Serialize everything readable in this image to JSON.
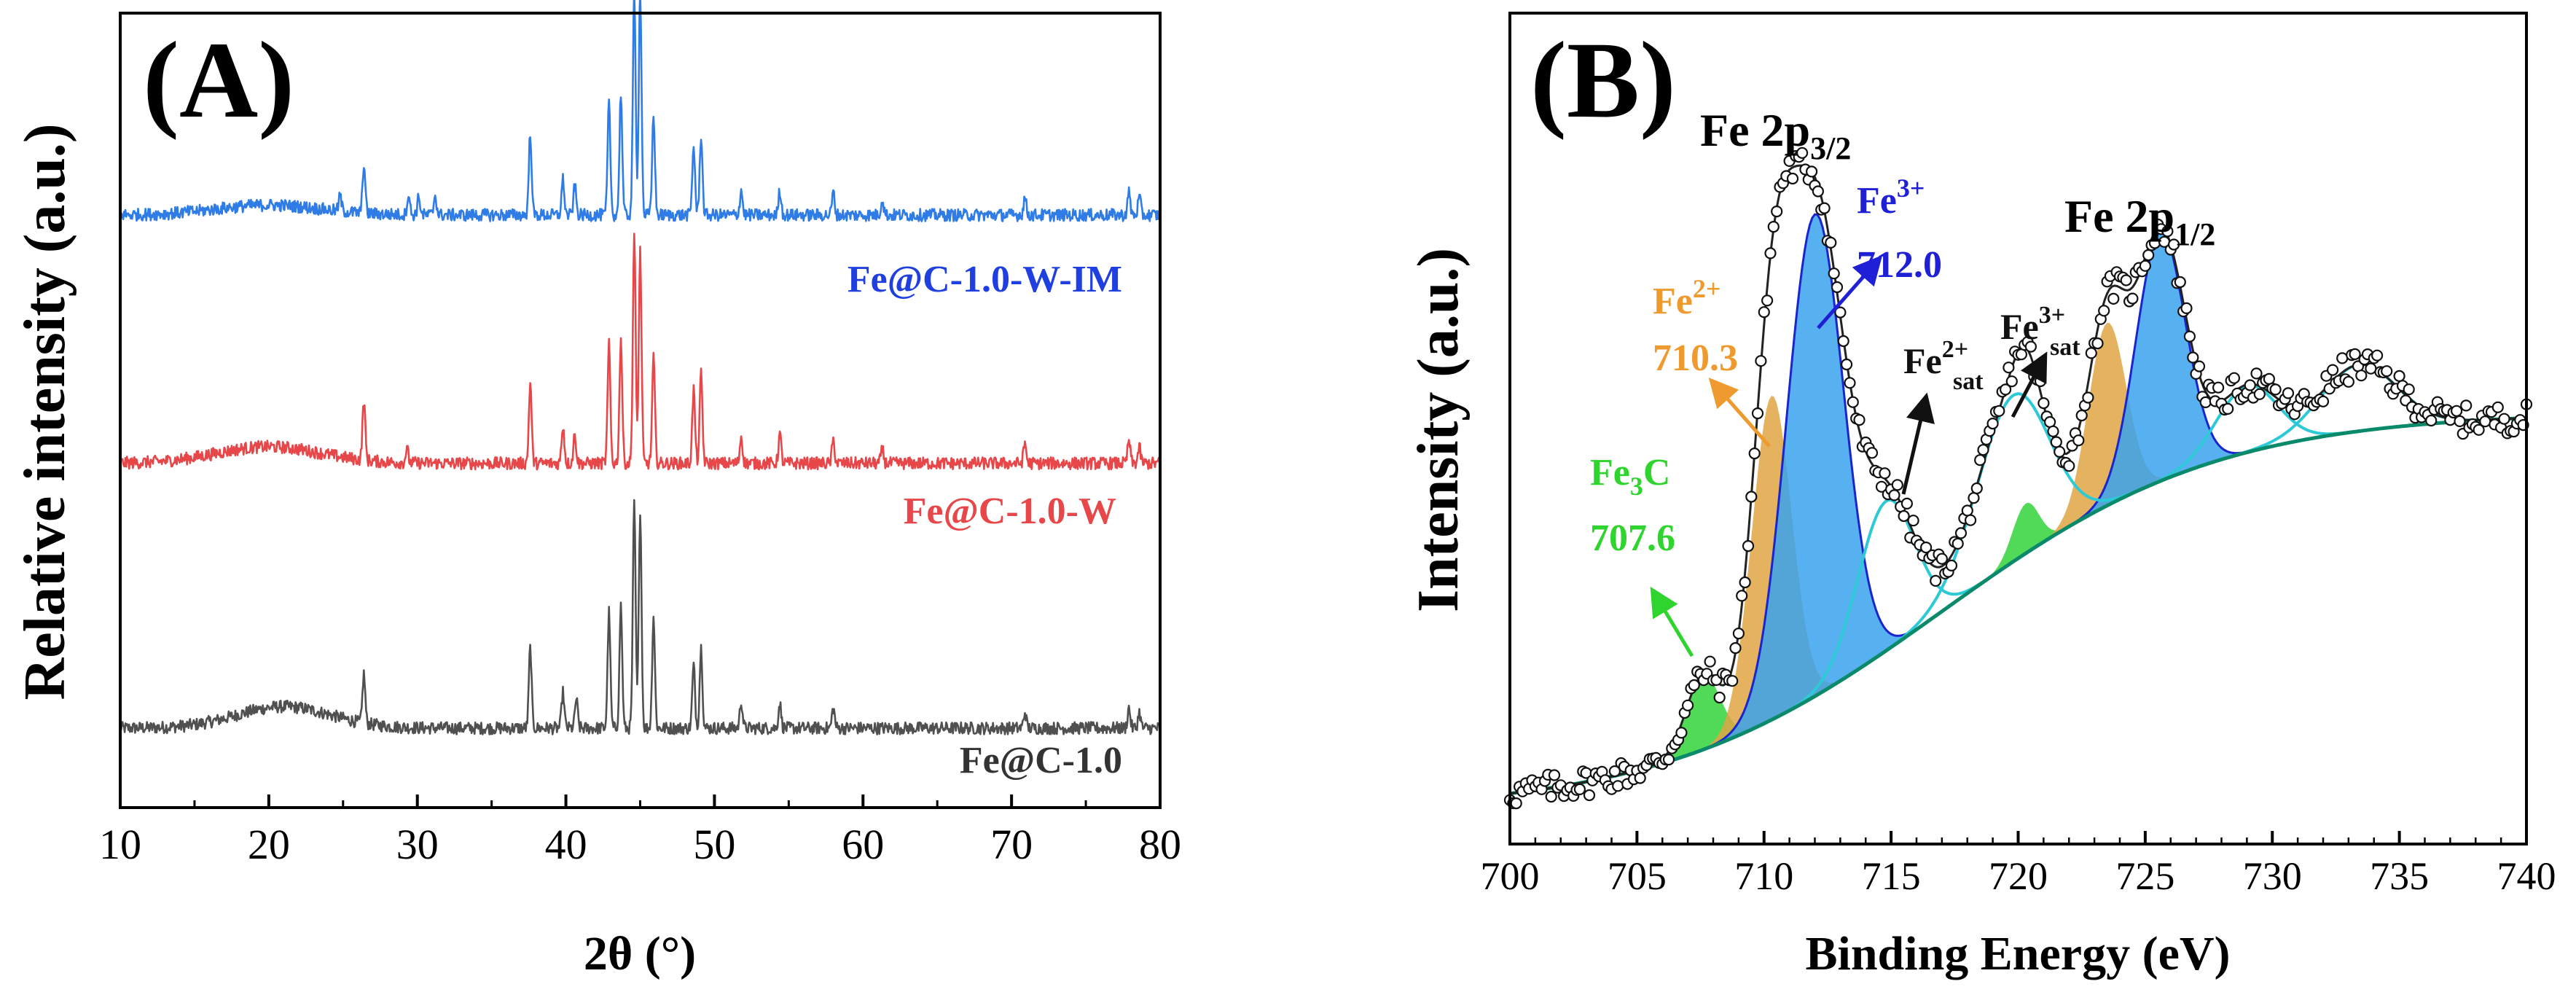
{
  "colors": {
    "black": "#000000",
    "gray_series": "#505050",
    "red_series": "#e8474a",
    "blue_series": "#2f7ce6",
    "fe3c_fill": "#33d43a",
    "fe2_fill": "#e0a444",
    "fe3_fill": "#3aa2ec",
    "fe3_outline": "#1b25cf",
    "sat_line": "#2ec9d6",
    "bg_line": "#0a8a6a",
    "fe2_label": "#ef9a2e",
    "fe3_label": "#1f1fd6",
    "fe3c_label": "#2fd42f"
  },
  "chart_data": [
    {
      "type": "line",
      "panel_label": "(A)",
      "title": "",
      "xlabel": "2θ (°)",
      "ylabel": "Relative intensity (a.u.)",
      "xlim": [
        10,
        80
      ],
      "xticks": [
        "10",
        "20",
        "30",
        "40",
        "50",
        "60",
        "70",
        "80"
      ],
      "yticks": [],
      "grid": false,
      "legend": "inline labels above each trace",
      "series": [
        {
          "name": "Fe@C-1.0",
          "color": "#505050",
          "baseline": 0,
          "amorphous_hump": {
            "center": 21,
            "height": 0.13,
            "width": 4.5
          },
          "peaks": [
            {
              "x": 26.4,
              "h": 0.22
            },
            {
              "x": 37.6,
              "h": 0.36
            },
            {
              "x": 39.8,
              "h": 0.16
            },
            {
              "x": 40.7,
              "h": 0.13
            },
            {
              "x": 42.9,
              "h": 0.52
            },
            {
              "x": 43.7,
              "h": 0.55
            },
            {
              "x": 44.6,
              "h": 1.0
            },
            {
              "x": 45.0,
              "h": 0.98
            },
            {
              "x": 45.9,
              "h": 0.5
            },
            {
              "x": 48.6,
              "h": 0.28
            },
            {
              "x": 49.1,
              "h": 0.36
            },
            {
              "x": 51.8,
              "h": 0.12
            },
            {
              "x": 54.4,
              "h": 0.11
            },
            {
              "x": 58.0,
              "h": 0.09
            },
            {
              "x": 70.9,
              "h": 0.07
            },
            {
              "x": 77.9,
              "h": 0.09
            },
            {
              "x": 78.6,
              "h": 0.07
            }
          ]
        },
        {
          "name": "Fe@C-1.0-W",
          "color": "#e8474a",
          "baseline": 1.6,
          "amorphous_hump": {
            "center": 20,
            "height": 0.1,
            "width": 5
          },
          "peaks": [
            {
              "x": 26.4,
              "h": 0.27
            },
            {
              "x": 29.3,
              "h": 0.06
            },
            {
              "x": 37.6,
              "h": 0.36
            },
            {
              "x": 39.8,
              "h": 0.17
            },
            {
              "x": 40.6,
              "h": 0.13
            },
            {
              "x": 42.9,
              "h": 0.53
            },
            {
              "x": 43.7,
              "h": 0.56
            },
            {
              "x": 44.6,
              "h": 1.02
            },
            {
              "x": 45.0,
              "h": 0.95
            },
            {
              "x": 45.9,
              "h": 0.47
            },
            {
              "x": 48.6,
              "h": 0.33
            },
            {
              "x": 49.1,
              "h": 0.4
            },
            {
              "x": 51.8,
              "h": 0.12
            },
            {
              "x": 54.4,
              "h": 0.13
            },
            {
              "x": 58.0,
              "h": 0.1
            },
            {
              "x": 61.3,
              "h": 0.06
            },
            {
              "x": 70.9,
              "h": 0.09
            },
            {
              "x": 77.9,
              "h": 0.1
            },
            {
              "x": 78.6,
              "h": 0.07
            }
          ]
        },
        {
          "name": "Fe@C-1.0-W-IM",
          "color": "#2f7ce6",
          "baseline": 3.1,
          "amorphous_hump": {
            "center": 20,
            "height": 0.06,
            "width": 5
          },
          "peaks": [
            {
              "x": 24.8,
              "h": 0.07
            },
            {
              "x": 26.4,
              "h": 0.22
            },
            {
              "x": 29.4,
              "h": 0.09
            },
            {
              "x": 30.1,
              "h": 0.08
            },
            {
              "x": 31.2,
              "h": 0.09
            },
            {
              "x": 37.6,
              "h": 0.37
            },
            {
              "x": 39.8,
              "h": 0.16
            },
            {
              "x": 40.6,
              "h": 0.13
            },
            {
              "x": 42.9,
              "h": 0.5
            },
            {
              "x": 43.7,
              "h": 0.55
            },
            {
              "x": 44.6,
              "h": 0.98
            },
            {
              "x": 45.0,
              "h": 1.02
            },
            {
              "x": 45.9,
              "h": 0.45
            },
            {
              "x": 48.6,
              "h": 0.31
            },
            {
              "x": 49.1,
              "h": 0.36
            },
            {
              "x": 51.8,
              "h": 0.11
            },
            {
              "x": 54.4,
              "h": 0.11
            },
            {
              "x": 58.0,
              "h": 0.1
            },
            {
              "x": 61.3,
              "h": 0.07
            },
            {
              "x": 70.9,
              "h": 0.08
            },
            {
              "x": 77.9,
              "h": 0.1
            },
            {
              "x": 78.6,
              "h": 0.08
            }
          ]
        }
      ],
      "ylim": [
        -0.3,
        4.5
      ]
    },
    {
      "type": "line",
      "panel_label": "(B)",
      "title": "",
      "xlabel": "Binding Energy (eV)",
      "ylabel": "Intensity (a.u.)",
      "xlim": [
        700,
        740
      ],
      "ylim": [
        0,
        1.0
      ],
      "xticks": [
        "700",
        "705",
        "710",
        "715",
        "720",
        "725",
        "730",
        "735",
        "740"
      ],
      "yticks": [],
      "grid": false,
      "legend": "annotations",
      "background": {
        "start": 0.04,
        "end": 0.52,
        "shape": "shirley-like sigmoid"
      },
      "components": [
        {
          "name": "Fe3C",
          "center": 707.6,
          "height": 0.09,
          "width": 0.9,
          "color": "#33d43a"
        },
        {
          "name": "Fe2+ 2p3/2",
          "center": 710.3,
          "height": 0.39,
          "width": 1.05,
          "color": "#e0a444"
        },
        {
          "name": "Fe3+ 2p3/2",
          "center": 712.0,
          "height": 0.58,
          "width": 1.5,
          "color": "#3aa2ec"
        },
        {
          "name": "Fe2+ sat",
          "center": 714.8,
          "height": 0.18,
          "width": 1.5,
          "color": "#2ec9d6"
        },
        {
          "name": "Fe3+ sat",
          "center": 719.8,
          "height": 0.2,
          "width": 1.9,
          "color": "#2ec9d6"
        },
        {
          "name": "Fe3C 2p1/2",
          "center": 720.3,
          "height": 0.06,
          "width": 0.7,
          "color": "#33d43a"
        },
        {
          "name": "Fe2+ 2p1/2",
          "center": 723.5,
          "height": 0.22,
          "width": 1.0,
          "color": "#e0a444"
        },
        {
          "name": "Fe3+ 2p1/2",
          "center": 725.6,
          "height": 0.3,
          "width": 1.3,
          "color": "#3aa2ec"
        },
        {
          "name": "sat 2p1/2 a",
          "center": 729.0,
          "height": 0.08,
          "width": 1.6,
          "color": "#2ec9d6"
        },
        {
          "name": "sat 2p1/2 b",
          "center": 733.4,
          "height": 0.08,
          "width": 2.0,
          "color": "#2ec9d6"
        }
      ]
    }
  ],
  "panel_b_annotations": {
    "fe2p32_label": "Fe 2p",
    "fe2p32_sub": "3/2",
    "fe2p12_label": "Fe 2p",
    "fe2p12_sub": "1/2",
    "fe3plus": "Fe",
    "fe3plus_sup": "3+",
    "fe3plus_value": "712.0",
    "fe2plus": "Fe",
    "fe2plus_sup": "2+",
    "fe2plus_value": "710.3",
    "fe3c": "Fe",
    "fe3c_sub": "3",
    "fe3c_c": "C",
    "fe3c_value": "707.6",
    "fe2sat": "Fe",
    "fe2sat_sup": "2+",
    "fe2sat_sub": "sat",
    "fe3sat": "Fe",
    "fe3sat_sup": "3+",
    "fe3sat_sub": "sat"
  }
}
